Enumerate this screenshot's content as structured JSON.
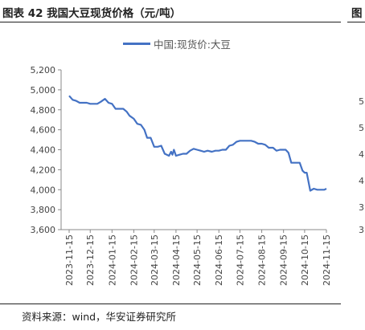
{
  "header": {
    "title": "图表 42 我国大豆现货价格（元/吨）",
    "next_title_fragment": "图"
  },
  "footer": {
    "source": "资料来源：wind，华安证券研究所"
  },
  "side_fragment_ticks": [
    "5",
    "5",
    "4",
    "4",
    "3",
    "3"
  ],
  "chart_data": {
    "type": "line",
    "title": "",
    "xlabel": "",
    "ylabel": "",
    "ylim": [
      3600,
      5200
    ],
    "y_ticks": [
      3600,
      3800,
      4000,
      4200,
      4400,
      4600,
      4800,
      5000,
      5200
    ],
    "y_tick_labels": [
      "3,600",
      "3,800",
      "4,000",
      "4,200",
      "4,400",
      "4,600",
      "4,800",
      "5,000",
      "5,200"
    ],
    "x_ticks": [
      "2023-11-15",
      "2023-12-15",
      "2024-01-15",
      "2024-02-15",
      "2024-03-15",
      "2024-04-15",
      "2024-05-15",
      "2024-06-15",
      "2024-07-15",
      "2024-08-15",
      "2024-09-15",
      "2024-10-15",
      "2024-11-15"
    ],
    "legend_position": "top-center",
    "grid": false,
    "series": [
      {
        "name": "中国:现货价:大豆",
        "color": "#4472C4",
        "x": [
          "2023-11-15",
          "2023-11-20",
          "2023-11-25",
          "2023-11-30",
          "2023-12-05",
          "2023-12-10",
          "2023-12-15",
          "2023-12-20",
          "2023-12-25",
          "2023-12-30",
          "2024-01-03",
          "2024-01-05",
          "2024-01-10",
          "2024-01-15",
          "2024-01-20",
          "2024-01-25",
          "2024-01-31",
          "2024-02-05",
          "2024-02-09",
          "2024-02-15",
          "2024-02-20",
          "2024-02-25",
          "2024-03-01",
          "2024-03-05",
          "2024-03-10",
          "2024-03-15",
          "2024-03-20",
          "2024-03-25",
          "2024-03-30",
          "2024-04-05",
          "2024-04-08",
          "2024-04-10",
          "2024-04-12",
          "2024-04-15",
          "2024-04-20",
          "2024-04-25",
          "2024-04-30",
          "2024-05-05",
          "2024-05-10",
          "2024-05-15",
          "2024-05-20",
          "2024-05-25",
          "2024-05-30",
          "2024-06-05",
          "2024-06-10",
          "2024-06-15",
          "2024-06-20",
          "2024-06-25",
          "2024-06-30",
          "2024-07-05",
          "2024-07-10",
          "2024-07-15",
          "2024-07-20",
          "2024-07-25",
          "2024-07-31",
          "2024-08-05",
          "2024-08-10",
          "2024-08-15",
          "2024-08-20",
          "2024-08-25",
          "2024-08-31",
          "2024-09-05",
          "2024-09-10",
          "2024-09-15",
          "2024-09-18",
          "2024-09-22",
          "2024-09-26",
          "2024-10-01",
          "2024-10-08",
          "2024-10-12",
          "2024-10-15",
          "2024-10-18",
          "2024-10-23",
          "2024-10-28",
          "2024-11-02",
          "2024-11-07",
          "2024-11-12",
          "2024-11-15"
        ],
        "values": [
          4940,
          4900,
          4890,
          4870,
          4870,
          4870,
          4860,
          4860,
          4860,
          4880,
          4900,
          4910,
          4870,
          4860,
          4810,
          4810,
          4810,
          4780,
          4740,
          4710,
          4660,
          4650,
          4600,
          4520,
          4520,
          4430,
          4430,
          4440,
          4360,
          4340,
          4380,
          4350,
          4400,
          4340,
          4350,
          4360,
          4360,
          4390,
          4410,
          4400,
          4390,
          4380,
          4390,
          4380,
          4390,
          4390,
          4400,
          4400,
          4440,
          4450,
          4480,
          4490,
          4490,
          4490,
          4490,
          4480,
          4460,
          4460,
          4450,
          4420,
          4420,
          4390,
          4400,
          4400,
          4400,
          4370,
          4270,
          4270,
          4270,
          4190,
          4170,
          4170,
          3990,
          4010,
          4000,
          4000,
          4000,
          4010
        ]
      }
    ]
  }
}
